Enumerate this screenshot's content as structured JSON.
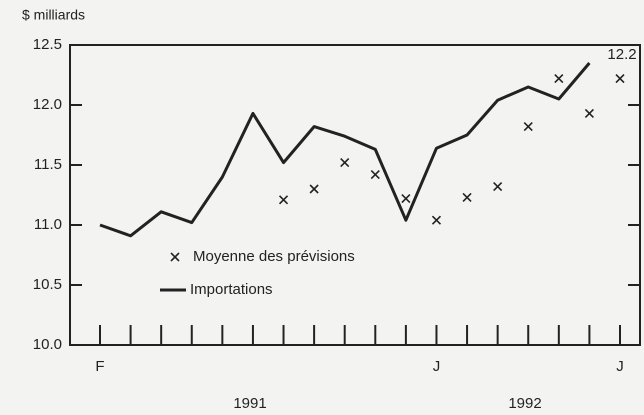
{
  "chart_data": {
    "type": "line",
    "y_label": "$ milliards",
    "categories": [
      "F",
      null,
      null,
      null,
      null,
      null,
      null,
      null,
      null,
      null,
      null,
      "J",
      null,
      null,
      null,
      null,
      null,
      "J"
    ],
    "year_labels": [
      "1991",
      "1992"
    ],
    "series": [
      {
        "name": "Importations",
        "color": "#222222",
        "type": "line",
        "values": [
          11.0,
          10.91,
          11.11,
          11.02,
          11.4,
          11.93,
          11.52,
          11.82,
          11.74,
          11.63,
          11.04,
          11.64,
          11.75,
          12.04,
          12.15,
          12.05,
          12.35,
          null
        ]
      },
      {
        "name": "Moyenne des prévisions",
        "color": "#222222",
        "type": "scatter",
        "values": [
          null,
          null,
          null,
          null,
          null,
          null,
          11.21,
          11.3,
          11.52,
          11.42,
          11.22,
          11.04,
          11.23,
          11.32,
          11.82,
          12.22,
          11.93,
          12.22
        ]
      }
    ],
    "end_label": "12.2",
    "ylim": [
      10.0,
      12.5
    ],
    "yticks": [
      {
        "value": 10.0,
        "label": "10.0"
      },
      {
        "value": 10.5,
        "label": "10.5"
      },
      {
        "value": 11.0,
        "label": "11.0"
      },
      {
        "value": 11.5,
        "label": "11.5"
      },
      {
        "value": 12.0,
        "label": "12.0"
      },
      {
        "value": 12.5,
        "label": "12.5"
      }
    ],
    "grid": false
  }
}
